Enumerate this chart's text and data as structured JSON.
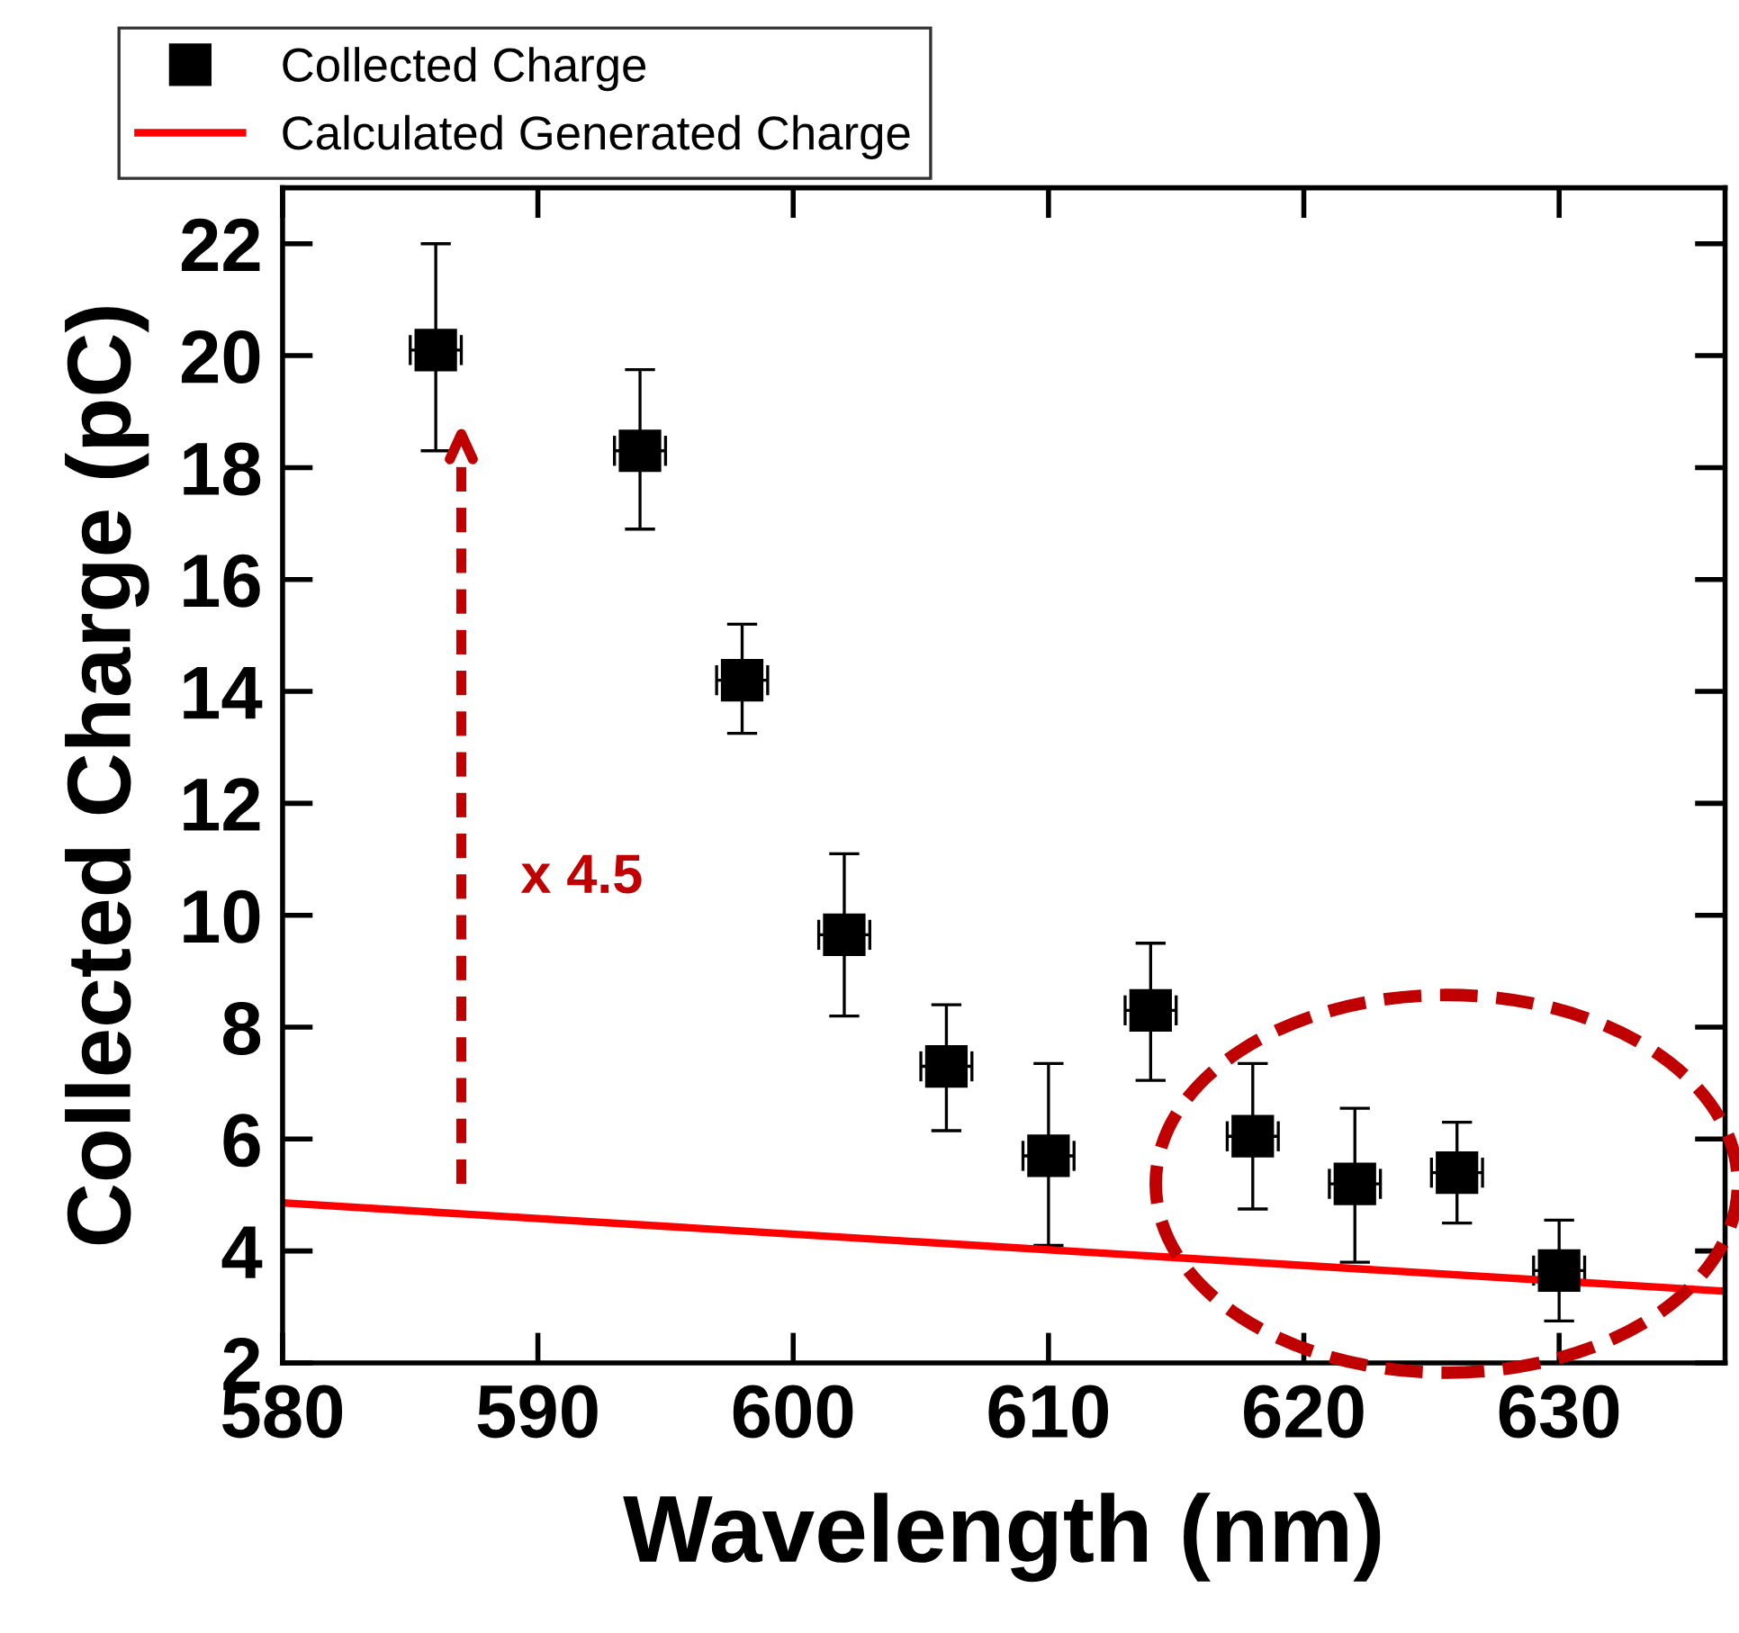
{
  "chart_data": {
    "type": "scatter",
    "xlabel": "Wavelength (nm)",
    "ylabel": "Collected Charge (pC)",
    "xlim": [
      580,
      636.5
    ],
    "xticks": [
      580,
      590,
      600,
      610,
      620,
      630
    ],
    "ylim": [
      2,
      23
    ],
    "yticks": [
      2,
      4,
      6,
      8,
      10,
      12,
      14,
      16,
      18,
      20,
      22
    ],
    "legend": "top left",
    "grid": false,
    "annotations": [
      "x 4.5"
    ],
    "series": [
      {
        "name": "Collected Charge",
        "marker": "square",
        "color": "#000000",
        "x": [
          586,
          594,
          598,
          602,
          606,
          610,
          614,
          618,
          622,
          626,
          630
        ],
        "values": [
          20.1,
          18.3,
          14.2,
          9.65,
          7.3,
          5.7,
          8.3,
          6.05,
          5.2,
          5.4,
          3.65
        ],
        "errors": [
          [
            18.3,
            22.0
          ],
          [
            16.9,
            19.75
          ],
          [
            13.25,
            15.2
          ],
          [
            8.2,
            11.1
          ],
          [
            6.15,
            8.4
          ],
          [
            4.1,
            7.35
          ],
          [
            7.05,
            9.5
          ],
          [
            4.75,
            7.35
          ],
          [
            3.8,
            6.55
          ],
          [
            4.5,
            6.3
          ],
          [
            2.75,
            4.55
          ]
        ],
        "xerrors": [
          1,
          1,
          1,
          1,
          1,
          1,
          1,
          1,
          1,
          1,
          1
        ]
      },
      {
        "name": "Calculated Generated Charge",
        "type": "line",
        "color": "#ff0000",
        "x": [
          580,
          636.5
        ],
        "values": [
          4.86,
          3.28
        ]
      }
    ]
  }
}
